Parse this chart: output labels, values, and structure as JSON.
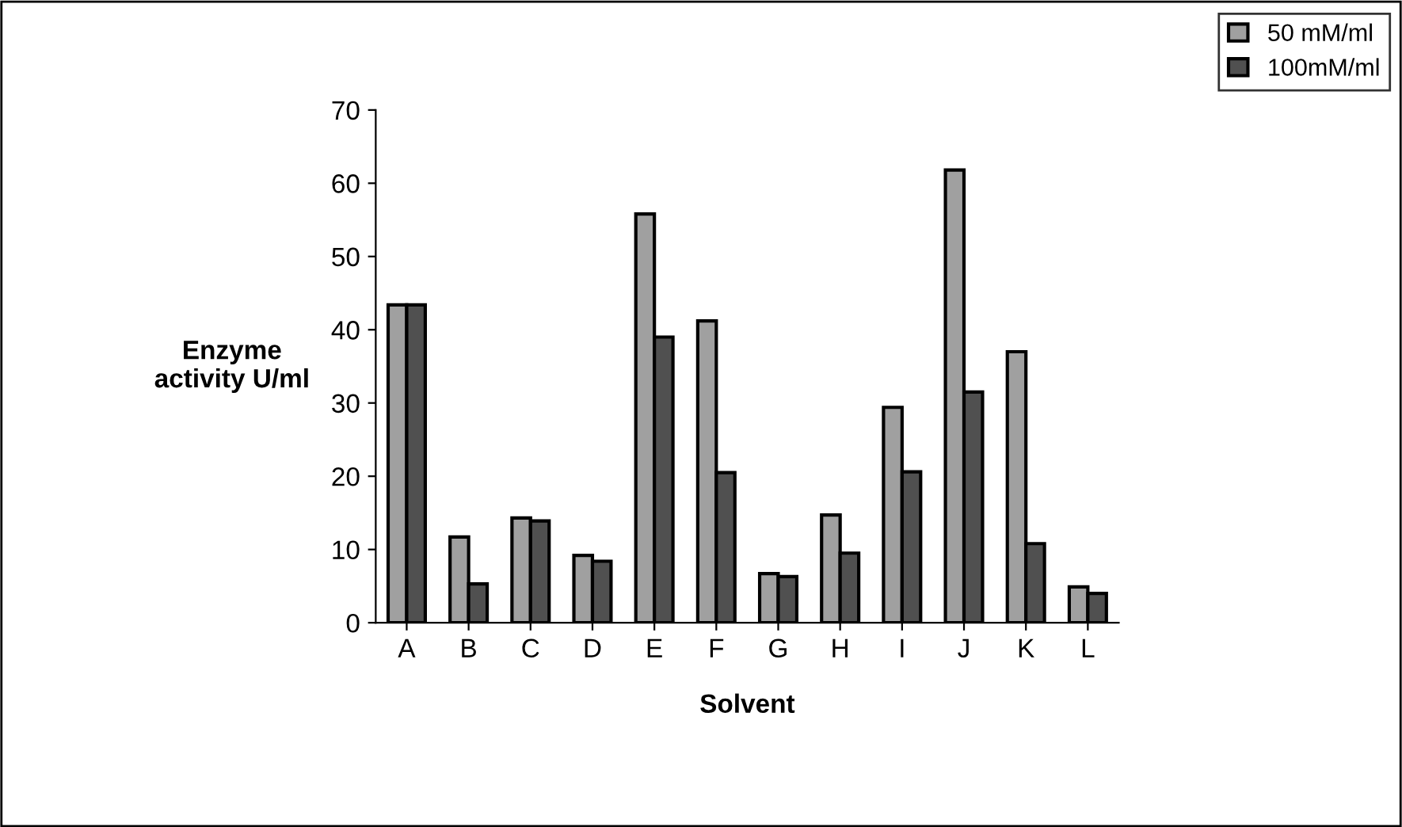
{
  "chart_data": {
    "type": "bar",
    "xlabel": "Solvent",
    "ylabel": "Enzyme\nactivity U/ml",
    "categories": [
      "A",
      "B",
      "C",
      "D",
      "E",
      "F",
      "G",
      "H",
      "I",
      "J",
      "K",
      "L"
    ],
    "series": [
      {
        "name": "50 mM/ml",
        "color": "#a0a0a0",
        "values": [
          43.4,
          11.7,
          14.3,
          9.2,
          55.8,
          41.2,
          6.7,
          14.7,
          29.4,
          61.8,
          37.0,
          4.9
        ]
      },
      {
        "name": "100mM/ml",
        "color": "#505050",
        "values": [
          43.4,
          5.3,
          13.9,
          8.4,
          39.0,
          20.5,
          6.3,
          9.5,
          20.6,
          31.5,
          10.8,
          4.0
        ]
      }
    ],
    "ylim": [
      0,
      70
    ],
    "yticks": [
      0,
      10,
      20,
      30,
      40,
      50,
      60,
      70
    ],
    "grid": false,
    "legend": "top right"
  }
}
